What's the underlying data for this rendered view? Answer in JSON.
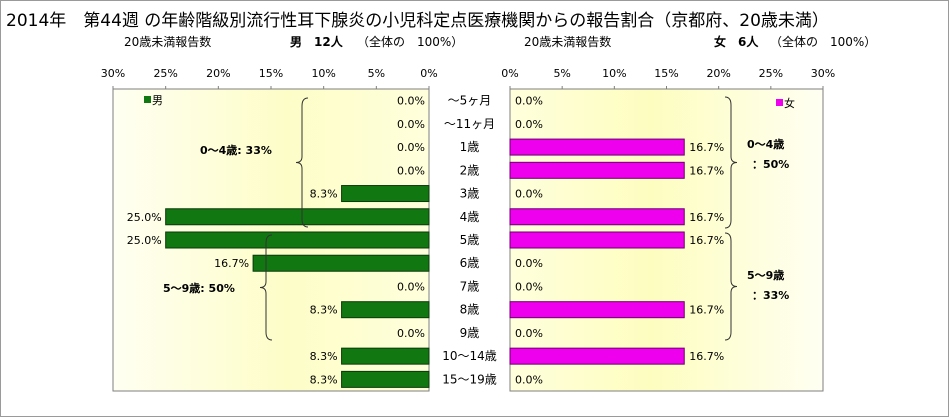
{
  "title": "2014年　第44週 の年齢階級別流行性耳下腺炎の小児科定点医療機関からの報告割合（京都府、20歳未満）",
  "male_header": {
    "label": "20歳未満報告数",
    "count": "男　12人",
    "total": "（全体の　100%）"
  },
  "female_header": {
    "label": "20歳未満報告数",
    "count": "女　6人",
    "total": "（全体の　100%）"
  },
  "colors": {
    "male": "#117711",
    "female": "#ee00ee",
    "bg_light": "#fffff0",
    "bg_yellow": "#fdfdb2"
  },
  "chart_data": {
    "type": "bar",
    "orientation": "horizontal-butterfly",
    "categories": [
      "～5ヶ月",
      "～11ヶ月",
      "1歳",
      "2歳",
      "3歳",
      "4歳",
      "5歳",
      "6歳",
      "7歳",
      "8歳",
      "9歳",
      "10～14歳",
      "15～19歳"
    ],
    "series": [
      {
        "name": "男",
        "values": [
          0.0,
          0.0,
          0.0,
          0.0,
          8.3,
          25.0,
          25.0,
          16.7,
          0.0,
          8.3,
          0.0,
          8.3,
          8.3
        ],
        "labels": [
          "0.0%",
          "0.0%",
          "0.0%",
          "0.0%",
          "8.3%",
          "25.0%",
          "25.0%",
          "16.7%",
          "0.0%",
          "8.3%",
          "0.0%",
          "8.3%",
          "8.3%"
        ]
      },
      {
        "name": "女",
        "values": [
          0.0,
          0.0,
          16.7,
          16.7,
          0.0,
          16.7,
          16.7,
          0.0,
          0.0,
          16.7,
          0.0,
          16.7,
          0.0
        ],
        "labels": [
          "0.0%",
          "0.0%",
          "16.7%",
          "16.7%",
          "0.0%",
          "16.7%",
          "16.7%",
          "0.0%",
          "0.0%",
          "16.7%",
          "0.0%",
          "16.7%",
          "0.0%"
        ]
      }
    ],
    "xlim": [
      0,
      30
    ],
    "male_ticks": [
      "30%",
      "25%",
      "20%",
      "15%",
      "10%",
      "5%",
      "0%"
    ],
    "female_ticks": [
      "0%",
      "5%",
      "10%",
      "15%",
      "20%",
      "25%",
      "30%"
    ],
    "annotations": {
      "male_0_4": "0～4歳: 33%",
      "male_5_9": "5～9歳: 50%",
      "female_0_4_line1": "0～4歳",
      "female_0_4_line2": "：50%",
      "female_5_9_line1": "5～9歳",
      "female_5_9_line2": "：33%"
    }
  }
}
